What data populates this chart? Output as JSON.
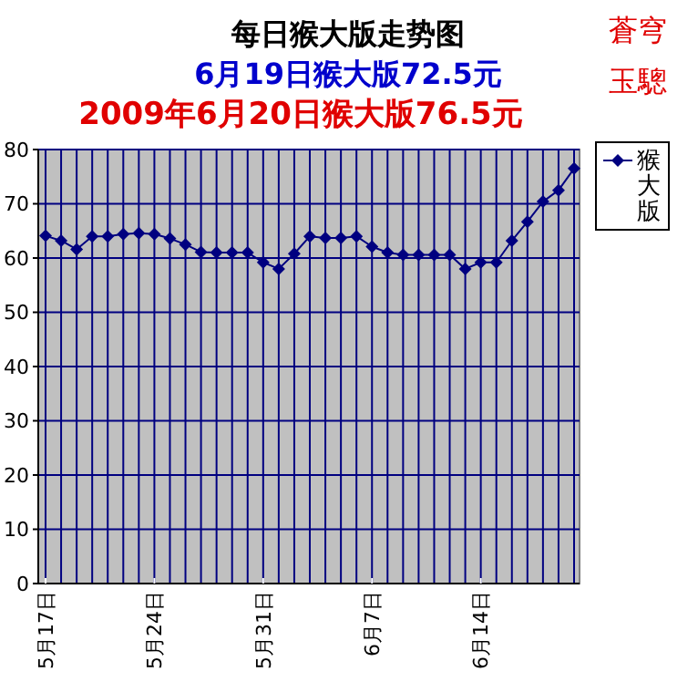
{
  "chart_data": {
    "type": "line",
    "title": "每日猴大版走势图",
    "subtitle": "6月19日猴大版72.5元",
    "annotations": [
      "2009年6月20日猴大版76.5元",
      "蒼穹",
      "玉驄"
    ],
    "categories": [
      "5月17日",
      null,
      null,
      null,
      null,
      null,
      null,
      "5月24日",
      null,
      null,
      null,
      null,
      null,
      null,
      "5月31日",
      null,
      null,
      null,
      null,
      null,
      null,
      "6月7日",
      null,
      null,
      null,
      null,
      null,
      null,
      "6月14日",
      null,
      null,
      null,
      null,
      null,
      null
    ],
    "series": [
      {
        "name": "猴大版",
        "color": "#000080",
        "values": [
          64.1,
          63.2,
          61.6,
          64,
          64,
          64.4,
          64.6,
          64.4,
          63.6,
          62.5,
          61.1,
          61,
          61,
          61,
          59.2,
          58,
          60.8,
          64,
          63.7,
          63.7,
          64,
          62.1,
          61,
          60.6,
          60.6,
          60.6,
          60.6,
          58,
          59.2,
          59.2,
          63.2,
          66.7,
          70.4,
          72.5,
          76.5
        ]
      }
    ],
    "ylim": [
      0,
      80
    ],
    "yticks": [
      0,
      10,
      20,
      30,
      40,
      50,
      60,
      70,
      80
    ],
    "grid": true,
    "legend": "right",
    "marker": "diamond",
    "line_style": "solid"
  }
}
